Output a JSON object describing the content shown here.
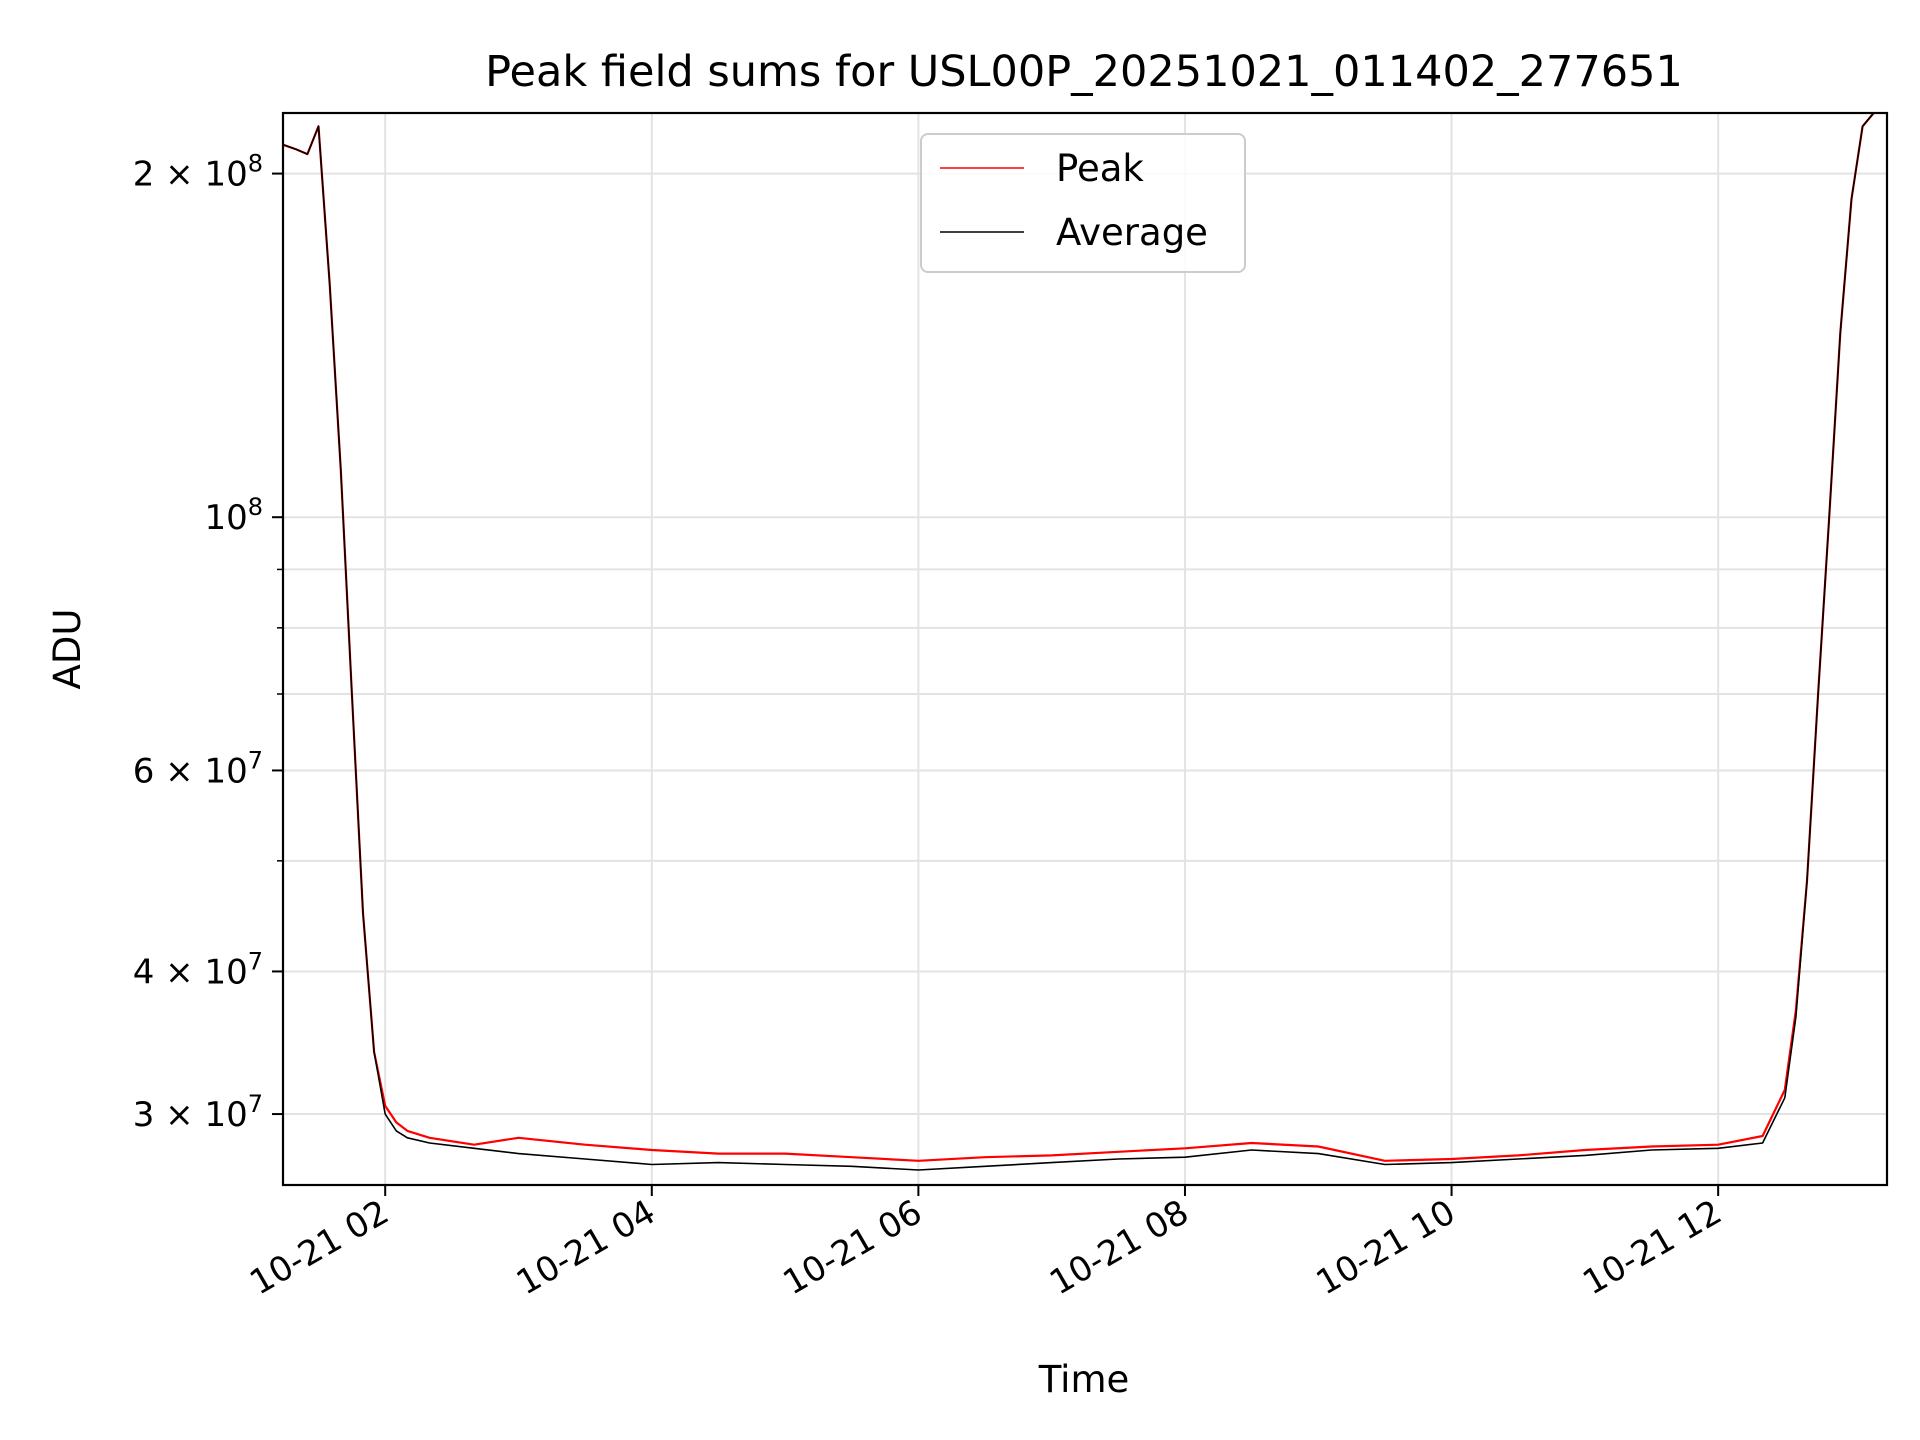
{
  "chart_data": {
    "type": "line",
    "title": "Peak field sums for USL00P_20251021_011402_277651",
    "xlabel": "Time",
    "ylabel": "ADU",
    "yscale": "log",
    "xlim": [
      "2025-10-21 01:14",
      "2025-10-21 13:16"
    ],
    "ylim": [
      26000000,
      226000000
    ],
    "grid": true,
    "legend_position": "upper center",
    "x_ticks": [
      {
        "value": "2025-10-21 02:00",
        "label": "10-21 02"
      },
      {
        "value": "2025-10-21 04:00",
        "label": "10-21 04"
      },
      {
        "value": "2025-10-21 06:00",
        "label": "10-21 06"
      },
      {
        "value": "2025-10-21 08:00",
        "label": "10-21 08"
      },
      {
        "value": "2025-10-21 10:00",
        "label": "10-21 10"
      },
      {
        "value": "2025-10-21 12:00",
        "label": "10-21 12"
      }
    ],
    "y_ticks": [
      {
        "value": 200000000,
        "mantissa": "2",
        "exponent": "8"
      },
      {
        "value": 100000000,
        "mantissa": "",
        "exponent": "8"
      },
      {
        "value": 60000000,
        "mantissa": "6",
        "exponent": "7"
      },
      {
        "value": 40000000,
        "mantissa": "4",
        "exponent": "7"
      },
      {
        "value": 30000000,
        "mantissa": "3",
        "exponent": "7"
      }
    ],
    "y_minor_ticks": [
      90000000,
      80000000,
      70000000,
      50000000
    ],
    "series": [
      {
        "name": "Peak",
        "color": "#ff0000",
        "x": [
          "2025-10-21 01:14",
          "2025-10-21 01:20",
          "2025-10-21 01:25",
          "2025-10-21 01:30",
          "2025-10-21 01:35",
          "2025-10-21 01:40",
          "2025-10-21 01:45",
          "2025-10-21 01:50",
          "2025-10-21 01:55",
          "2025-10-21 02:00",
          "2025-10-21 02:05",
          "2025-10-21 02:10",
          "2025-10-21 02:20",
          "2025-10-21 02:40",
          "2025-10-21 03:00",
          "2025-10-21 03:30",
          "2025-10-21 04:00",
          "2025-10-21 04:30",
          "2025-10-21 05:00",
          "2025-10-21 05:30",
          "2025-10-21 06:00",
          "2025-10-21 06:30",
          "2025-10-21 07:00",
          "2025-10-21 07:30",
          "2025-10-21 08:00",
          "2025-10-21 08:30",
          "2025-10-21 09:00",
          "2025-10-21 09:30",
          "2025-10-21 10:00",
          "2025-10-21 10:30",
          "2025-10-21 11:00",
          "2025-10-21 11:30",
          "2025-10-21 12:00",
          "2025-10-21 12:20",
          "2025-10-21 12:30",
          "2025-10-21 12:35",
          "2025-10-21 12:40",
          "2025-10-21 12:45",
          "2025-10-21 12:50",
          "2025-10-21 12:55",
          "2025-10-21 13:00",
          "2025-10-21 13:05",
          "2025-10-21 13:10"
        ],
        "y": [
          212000000,
          210000000,
          208000000,
          220000000,
          160000000,
          110000000,
          70000000,
          45000000,
          34000000,
          30500000,
          29500000,
          29000000,
          28600000,
          28200000,
          28600000,
          28200000,
          27900000,
          27700000,
          27700000,
          27500000,
          27300000,
          27500000,
          27600000,
          27800000,
          28000000,
          28300000,
          28100000,
          27300000,
          27400000,
          27600000,
          27900000,
          28100000,
          28200000,
          28700000,
          31500000,
          37000000,
          48000000,
          70000000,
          100000000,
          145000000,
          190000000,
          220000000,
          226000000
        ]
      },
      {
        "name": "Average",
        "color": "#000000",
        "x": [
          "2025-10-21 01:14",
          "2025-10-21 01:20",
          "2025-10-21 01:25",
          "2025-10-21 01:30",
          "2025-10-21 01:35",
          "2025-10-21 01:40",
          "2025-10-21 01:45",
          "2025-10-21 01:50",
          "2025-10-21 01:55",
          "2025-10-21 02:00",
          "2025-10-21 02:05",
          "2025-10-21 02:10",
          "2025-10-21 02:20",
          "2025-10-21 02:40",
          "2025-10-21 03:00",
          "2025-10-21 03:30",
          "2025-10-21 04:00",
          "2025-10-21 04:30",
          "2025-10-21 05:00",
          "2025-10-21 05:30",
          "2025-10-21 06:00",
          "2025-10-21 06:30",
          "2025-10-21 07:00",
          "2025-10-21 07:30",
          "2025-10-21 08:00",
          "2025-10-21 08:30",
          "2025-10-21 09:00",
          "2025-10-21 09:30",
          "2025-10-21 10:00",
          "2025-10-21 10:30",
          "2025-10-21 11:00",
          "2025-10-21 11:30",
          "2025-10-21 12:00",
          "2025-10-21 12:20",
          "2025-10-21 12:30",
          "2025-10-21 12:35",
          "2025-10-21 12:40",
          "2025-10-21 12:45",
          "2025-10-21 12:50",
          "2025-10-21 12:55",
          "2025-10-21 13:00",
          "2025-10-21 13:05",
          "2025-10-21 13:10"
        ],
        "y": [
          212000000,
          210000000,
          208000000,
          220000000,
          160000000,
          110000000,
          70000000,
          45000000,
          34000000,
          30000000,
          29000000,
          28600000,
          28300000,
          28000000,
          27700000,
          27400000,
          27100000,
          27200000,
          27100000,
          27000000,
          26800000,
          27000000,
          27200000,
          27400000,
          27500000,
          27900000,
          27700000,
          27100000,
          27200000,
          27400000,
          27600000,
          27900000,
          28000000,
          28300000,
          31000000,
          36500000,
          48000000,
          70000000,
          100000000,
          145000000,
          190000000,
          220000000,
          226000000
        ]
      }
    ]
  }
}
